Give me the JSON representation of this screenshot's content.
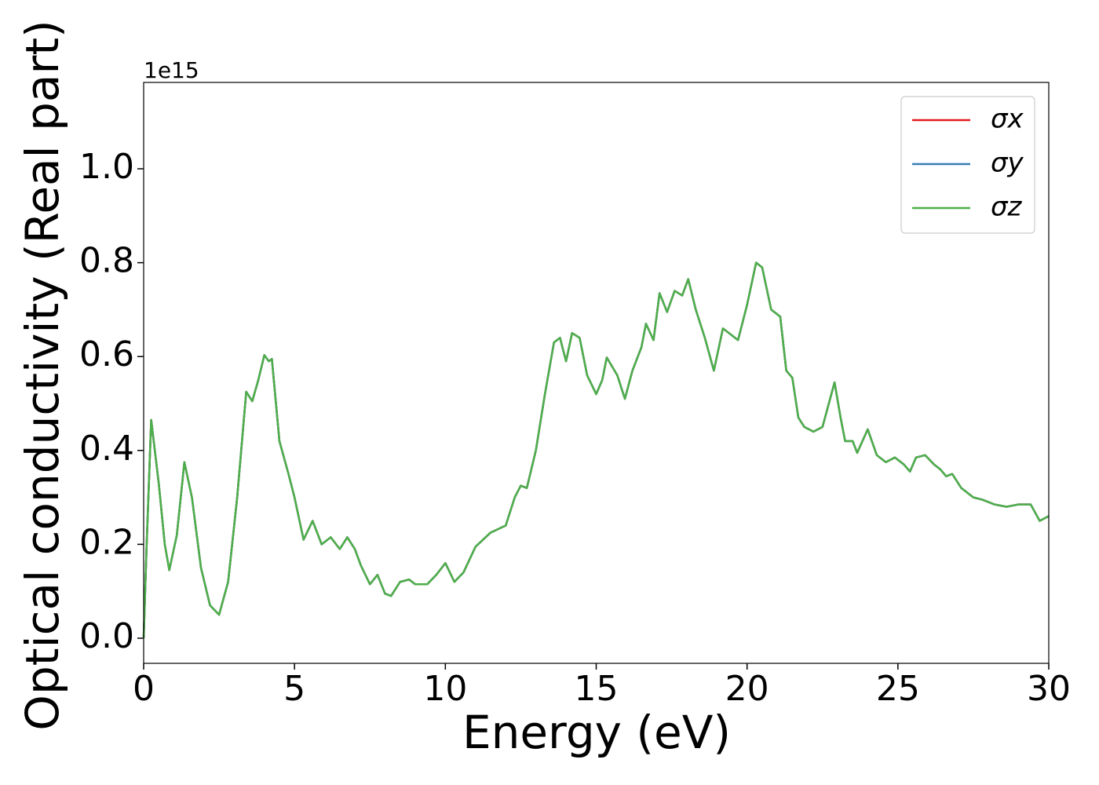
{
  "chart_data": {
    "type": "line",
    "x_label": "Energy (eV)",
    "y_label": "Optical conductivity (Real part)",
    "y_offset_label": "1e15",
    "xlim": [
      0,
      30
    ],
    "ylim": [
      -0.0535,
      1.184
    ],
    "xticks": [
      0,
      5,
      10,
      15,
      20,
      25,
      30
    ],
    "yticks": [
      {
        "value": 0,
        "label": "0.0"
      },
      0.2,
      0.4,
      0.6,
      0.8,
      {
        "value": 1,
        "label": "1.0"
      }
    ],
    "legend": "upper right",
    "x": [
      0,
      0.1,
      0.25,
      0.5,
      0.7,
      0.85,
      1.1,
      1.35,
      1.6,
      1.9,
      2.2,
      2.5,
      2.8,
      3.1,
      3.4,
      3.6,
      3.8,
      4.0,
      4.15,
      4.25,
      4.5,
      4.8,
      5.0,
      5.3,
      5.6,
      5.9,
      6.2,
      6.5,
      6.75,
      7.0,
      7.2,
      7.5,
      7.75,
      8.0,
      8.2,
      8.5,
      8.8,
      9.0,
      9.4,
      9.7,
      10.0,
      10.3,
      10.6,
      11.0,
      11.5,
      12.0,
      12.3,
      12.5,
      12.7,
      13.0,
      13.3,
      13.6,
      13.8,
      14.0,
      14.2,
      14.45,
      14.7,
      15.0,
      15.2,
      15.35,
      15.7,
      15.95,
      16.2,
      16.5,
      16.65,
      16.9,
      17.1,
      17.35,
      17.6,
      17.85,
      18.05,
      18.3,
      18.6,
      18.9,
      19.2,
      19.4,
      19.7,
      20.0,
      20.3,
      20.5,
      20.8,
      21.1,
      21.3,
      21.5,
      21.7,
      21.9,
      22.2,
      22.5,
      22.9,
      23.1,
      23.25,
      23.5,
      23.65,
      24.0,
      24.3,
      24.6,
      24.9,
      25.2,
      25.4,
      25.6,
      25.9,
      26.2,
      26.4,
      26.6,
      26.8,
      27.1,
      27.3,
      27.5,
      27.8,
      28.2,
      28.6,
      29.0,
      29.4,
      29.7,
      30.0
    ],
    "series": [
      {
        "name": "σx",
        "color": "#e41a1c",
        "values": [
          0,
          0.2,
          0.465,
          0.33,
          0.2,
          0.145,
          0.22,
          0.375,
          0.3,
          0.15,
          0.07,
          0.05,
          0.12,
          0.3,
          0.525,
          0.505,
          0.55,
          0.603,
          0.59,
          0.595,
          0.42,
          0.35,
          0.3,
          0.21,
          0.25,
          0.2,
          0.215,
          0.19,
          0.215,
          0.19,
          0.155,
          0.115,
          0.135,
          0.095,
          0.09,
          0.12,
          0.125,
          0.115,
          0.115,
          0.135,
          0.16,
          0.12,
          0.14,
          0.195,
          0.225,
          0.24,
          0.3,
          0.325,
          0.32,
          0.4,
          0.52,
          0.63,
          0.64,
          0.59,
          0.65,
          0.64,
          0.56,
          0.52,
          0.55,
          0.598,
          0.56,
          0.51,
          0.57,
          0.62,
          0.67,
          0.635,
          0.735,
          0.695,
          0.74,
          0.73,
          0.765,
          0.7,
          0.64,
          0.57,
          0.66,
          0.65,
          0.635,
          0.71,
          0.8,
          0.79,
          0.7,
          0.685,
          0.57,
          0.555,
          0.47,
          0.45,
          0.44,
          0.45,
          0.545,
          0.47,
          0.42,
          0.42,
          0.395,
          0.445,
          0.39,
          0.375,
          0.385,
          0.37,
          0.355,
          0.385,
          0.39,
          0.37,
          0.36,
          0.345,
          0.35,
          0.32,
          0.31,
          0.3,
          0.295,
          0.285,
          0.28,
          0.285,
          0.285,
          0.25,
          0.26
        ]
      },
      {
        "name": "σy",
        "color": "#377eb8",
        "values": [
          0,
          0.2,
          0.465,
          0.33,
          0.2,
          0.145,
          0.22,
          0.375,
          0.3,
          0.15,
          0.07,
          0.05,
          0.12,
          0.3,
          0.525,
          0.505,
          0.55,
          0.603,
          0.59,
          0.595,
          0.42,
          0.35,
          0.3,
          0.21,
          0.25,
          0.2,
          0.215,
          0.19,
          0.215,
          0.19,
          0.155,
          0.115,
          0.135,
          0.095,
          0.09,
          0.12,
          0.125,
          0.115,
          0.115,
          0.135,
          0.16,
          0.12,
          0.14,
          0.195,
          0.225,
          0.24,
          0.3,
          0.325,
          0.32,
          0.4,
          0.52,
          0.63,
          0.64,
          0.59,
          0.65,
          0.64,
          0.56,
          0.52,
          0.55,
          0.598,
          0.56,
          0.51,
          0.57,
          0.62,
          0.67,
          0.635,
          0.735,
          0.695,
          0.74,
          0.73,
          0.765,
          0.7,
          0.64,
          0.57,
          0.66,
          0.65,
          0.635,
          0.71,
          0.8,
          0.79,
          0.7,
          0.685,
          0.57,
          0.555,
          0.47,
          0.45,
          0.44,
          0.45,
          0.545,
          0.47,
          0.42,
          0.42,
          0.395,
          0.445,
          0.39,
          0.375,
          0.385,
          0.37,
          0.355,
          0.385,
          0.39,
          0.37,
          0.36,
          0.345,
          0.35,
          0.32,
          0.31,
          0.3,
          0.295,
          0.285,
          0.28,
          0.285,
          0.285,
          0.25,
          0.26
        ]
      },
      {
        "name": "σz",
        "color": "#4daf4a",
        "values": [
          0,
          0.2,
          0.465,
          0.33,
          0.2,
          0.145,
          0.22,
          0.375,
          0.3,
          0.15,
          0.07,
          0.05,
          0.12,
          0.3,
          0.525,
          0.505,
          0.55,
          0.603,
          0.59,
          0.595,
          0.42,
          0.35,
          0.3,
          0.21,
          0.25,
          0.2,
          0.215,
          0.19,
          0.215,
          0.19,
          0.155,
          0.115,
          0.135,
          0.095,
          0.09,
          0.12,
          0.125,
          0.115,
          0.115,
          0.135,
          0.16,
          0.12,
          0.14,
          0.195,
          0.225,
          0.24,
          0.3,
          0.325,
          0.32,
          0.4,
          0.52,
          0.63,
          0.64,
          0.59,
          0.65,
          0.64,
          0.56,
          0.52,
          0.55,
          0.598,
          0.56,
          0.51,
          0.57,
          0.62,
          0.67,
          0.635,
          0.735,
          0.695,
          0.74,
          0.73,
          0.765,
          0.7,
          0.64,
          0.57,
          0.66,
          0.65,
          0.635,
          0.71,
          0.8,
          0.79,
          0.7,
          0.685,
          0.57,
          0.555,
          0.47,
          0.45,
          0.44,
          0.45,
          0.545,
          0.47,
          0.42,
          0.42,
          0.395,
          0.445,
          0.39,
          0.375,
          0.385,
          0.37,
          0.355,
          0.385,
          0.39,
          0.37,
          0.36,
          0.345,
          0.35,
          0.32,
          0.31,
          0.3,
          0.295,
          0.285,
          0.28,
          0.285,
          0.285,
          0.25,
          0.26
        ]
      }
    ]
  }
}
